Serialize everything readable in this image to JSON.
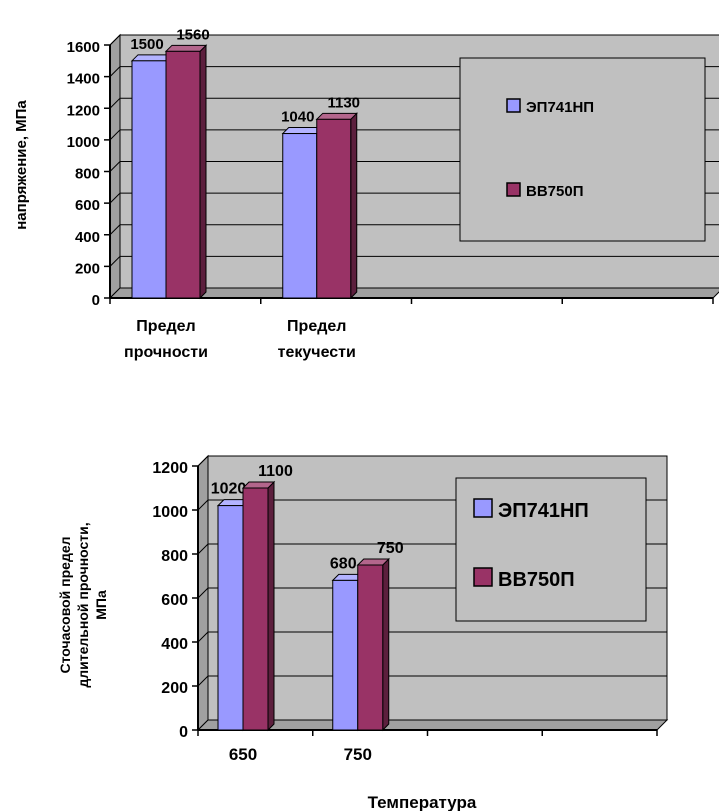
{
  "chart_data": [
    {
      "type": "bar",
      "title": "",
      "ylabel": "напряжение, МПа",
      "xlabel": "",
      "categories": [
        [
          "Предел",
          "прочности"
        ],
        [
          "Предел",
          "текучести"
        ]
      ],
      "series": [
        {
          "name": "ЭП741НП",
          "values": [
            1500,
            1040
          ]
        },
        {
          "name": "ВВ750П",
          "values": [
            1560,
            1130
          ]
        }
      ],
      "data_labels": [
        [
          "1500",
          "1040"
        ],
        [
          "1560",
          "1130"
        ]
      ],
      "ylim": [
        0,
        1600
      ],
      "yticks": [
        0,
        200,
        400,
        600,
        800,
        1000,
        1200,
        1400,
        1600
      ],
      "grid": true,
      "legend": "right",
      "colors": {
        "series1": "#9999ff",
        "series2": "#993366",
        "wall": "#c0c0c0"
      }
    },
    {
      "type": "bar",
      "title": "",
      "ylabel": [
        "Сточасовой предел",
        "длительной прочности,",
        "МПа"
      ],
      "xlabel": "Температура",
      "categories": [
        [
          "650"
        ],
        [
          "750"
        ]
      ],
      "series": [
        {
          "name": "ЭП741НП",
          "values": [
            1020,
            680
          ]
        },
        {
          "name": "ВВ750П",
          "values": [
            1100,
            750
          ]
        }
      ],
      "data_labels": [
        [
          "1020",
          "680"
        ],
        [
          "1100",
          "750"
        ]
      ],
      "ylim": [
        0,
        1200
      ],
      "yticks": [
        0,
        200,
        400,
        600,
        800,
        1000,
        1200
      ],
      "grid": true,
      "legend": "right",
      "colors": {
        "series1": "#9999ff",
        "series2": "#993366",
        "wall": "#c0c0c0"
      }
    }
  ]
}
